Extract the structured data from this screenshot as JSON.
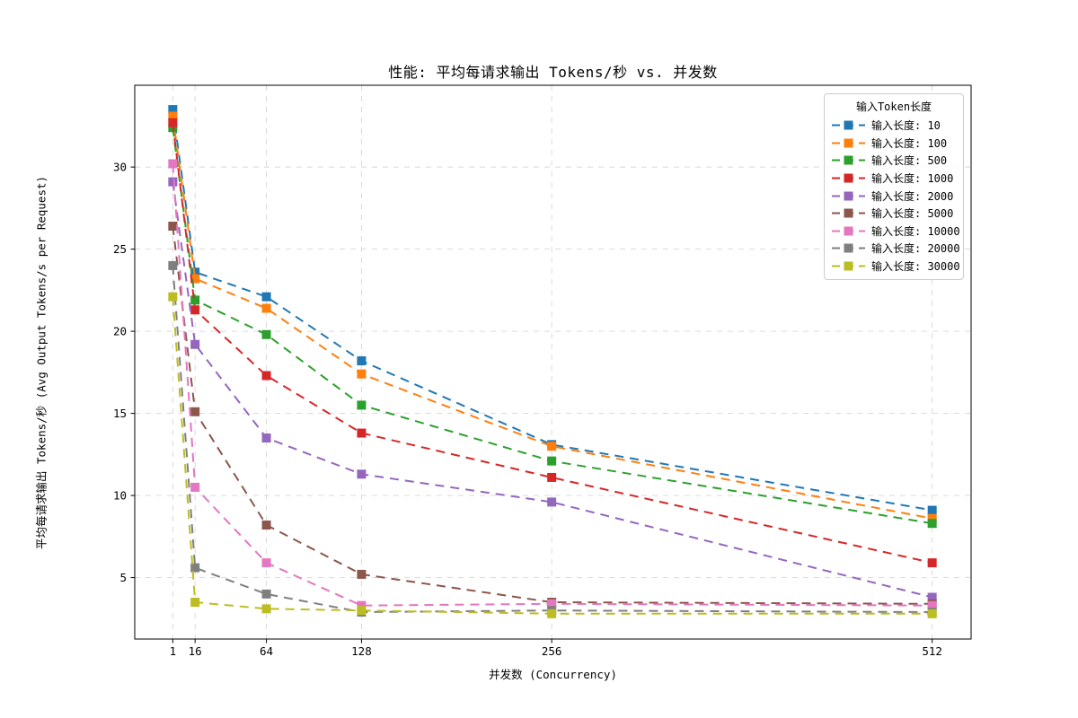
{
  "title": "性能: 平均每请求输出 Tokens/秒 vs. 并发数",
  "axes": {
    "xlabel": "并发数 (Concurrency)",
    "ylabel": "平均每请求输出 Tokens/秒 (Avg Output Tokens/s per Request)"
  },
  "legend": {
    "title": "输入Token长度",
    "position": "upper-right"
  },
  "palette": {
    "grid": "#cfcfcf",
    "frame": "#000000",
    "background": "#ffffff"
  },
  "chart_data": {
    "type": "line",
    "title": "性能: 平均每请求输出 Tokens/秒 vs. 并发数",
    "xlabel": "并发数 (Concurrency)",
    "ylabel": "平均每请求输出 Tokens/秒 (Avg Output Tokens/s per Request)",
    "x": [
      1,
      16,
      64,
      128,
      256,
      512
    ],
    "x_tick_labels": [
      "1",
      "16",
      "64",
      "128",
      "256",
      "512"
    ],
    "y_ticks": [
      5,
      10,
      15,
      20,
      25,
      30
    ],
    "xlim": [
      -24.6,
      538.2
    ],
    "ylim": [
      1.26,
      34.98
    ],
    "grid": true,
    "line_style": "dashed",
    "marker": "square",
    "legend_position": "upper right",
    "series": [
      {
        "name": "输入长度: 10",
        "color": "#1f77b4",
        "values": [
          33.5,
          23.6,
          22.1,
          18.2,
          13.1,
          9.1
        ]
      },
      {
        "name": "输入长度: 100",
        "color": "#ff7f0e",
        "values": [
          33.1,
          23.2,
          21.4,
          17.4,
          13.0,
          8.6
        ]
      },
      {
        "name": "输入长度: 500",
        "color": "#2ca02c",
        "values": [
          32.4,
          21.9,
          19.8,
          15.5,
          12.1,
          8.3
        ]
      },
      {
        "name": "输入长度: 1000",
        "color": "#d62728",
        "values": [
          32.7,
          21.3,
          17.3,
          13.8,
          11.1,
          5.9
        ]
      },
      {
        "name": "输入长度: 2000",
        "color": "#9467bd",
        "values": [
          29.1,
          19.2,
          13.5,
          11.3,
          9.6,
          3.8
        ]
      },
      {
        "name": "输入长度: 5000",
        "color": "#8c564b",
        "values": [
          26.4,
          15.1,
          8.2,
          5.2,
          3.5,
          3.4
        ]
      },
      {
        "name": "输入长度: 10000",
        "color": "#e377c2",
        "values": [
          30.2,
          10.5,
          5.9,
          3.3,
          3.4,
          3.3
        ]
      },
      {
        "name": "输入长度: 20000",
        "color": "#7f7f7f",
        "values": [
          24.0,
          5.6,
          4.0,
          2.9,
          3.0,
          2.9
        ]
      },
      {
        "name": "输入长度: 30000",
        "color": "#bcbd22",
        "values": [
          22.1,
          3.5,
          3.1,
          3.0,
          2.8,
          2.8
        ]
      }
    ]
  }
}
